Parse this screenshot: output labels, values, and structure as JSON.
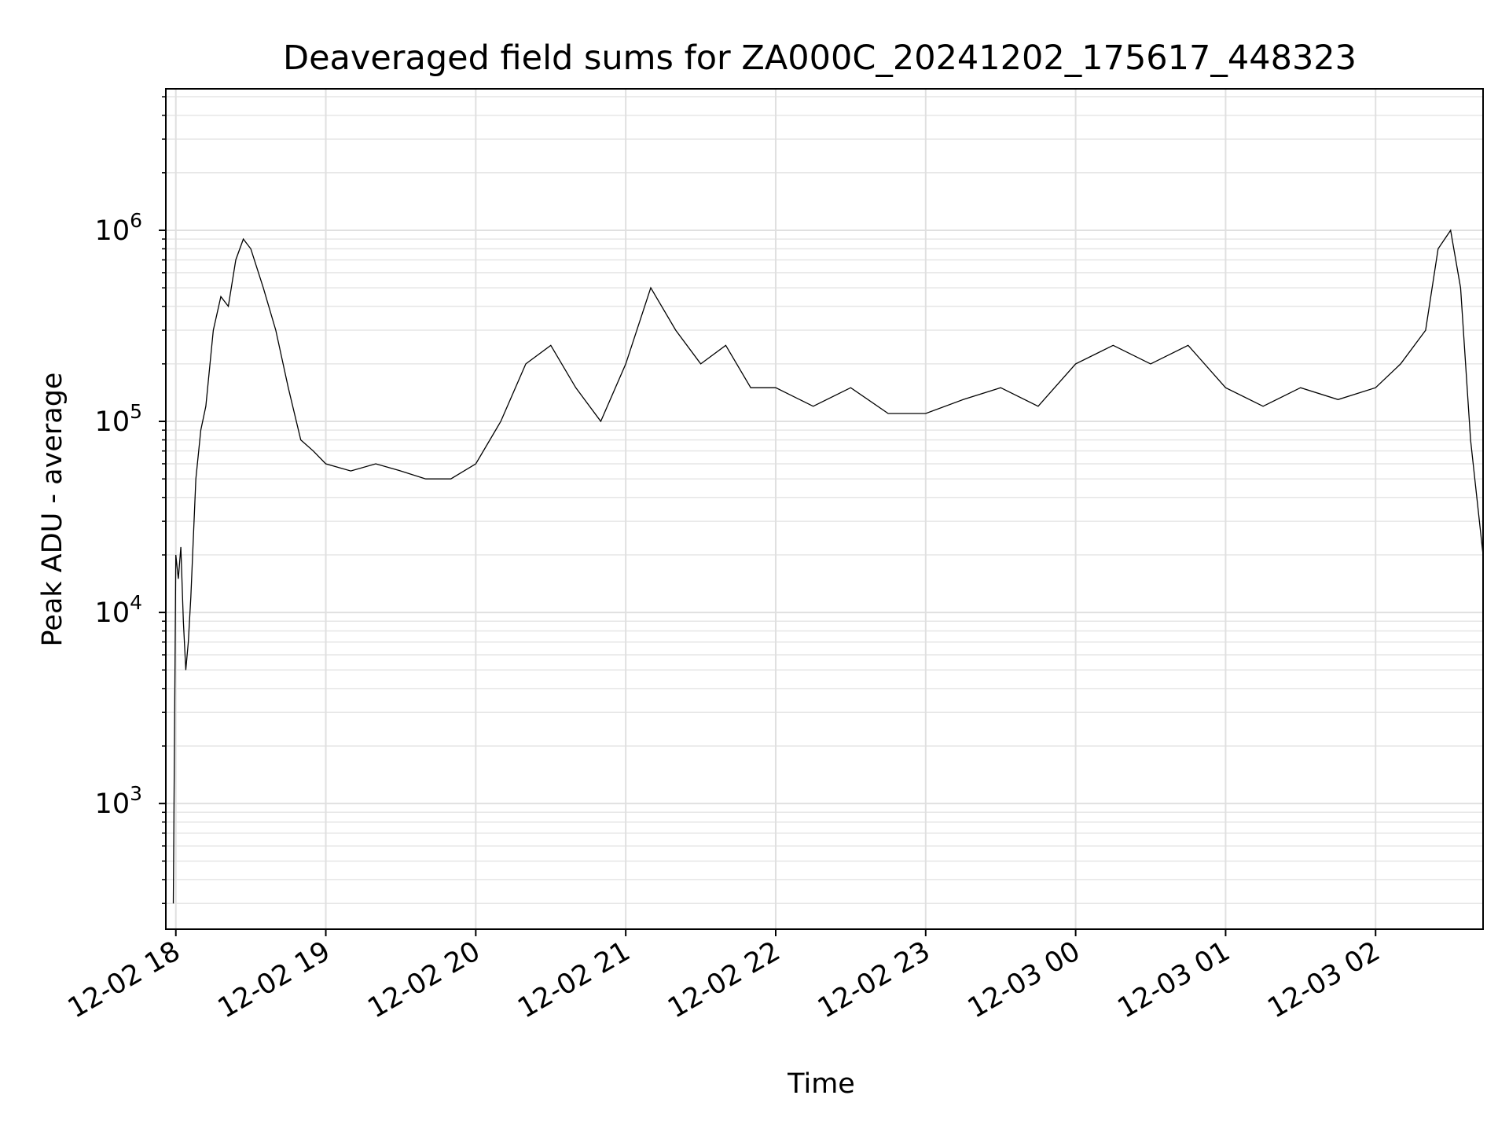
{
  "chart_data": {
    "type": "line",
    "title": "Deaveraged field sums for ZA000C_20241202_175617_448323",
    "xlabel": "Time",
    "ylabel": "Peak ADU - average",
    "yscale": "log",
    "ylim": [
      220,
      5500000
    ],
    "xlim": [
      "2024-12-02 17:56",
      "2024-12-03 02:43"
    ],
    "grid": true,
    "x_ticks": [
      {
        "value": "2024-12-02 18:00",
        "label": "12-02 18"
      },
      {
        "value": "2024-12-02 19:00",
        "label": "12-02 19"
      },
      {
        "value": "2024-12-02 20:00",
        "label": "12-02 20"
      },
      {
        "value": "2024-12-02 21:00",
        "label": "12-02 21"
      },
      {
        "value": "2024-12-02 22:00",
        "label": "12-02 22"
      },
      {
        "value": "2024-12-02 23:00",
        "label": "12-02 23"
      },
      {
        "value": "2024-12-03 00:00",
        "label": "12-03 00"
      },
      {
        "value": "2024-12-03 01:00",
        "label": "12-03 01"
      },
      {
        "value": "2024-12-03 02:00",
        "label": "12-03 02"
      }
    ],
    "y_ticks": [
      {
        "value": 1000,
        "base": "10",
        "exp": "3"
      },
      {
        "value": 10000,
        "base": "10",
        "exp": "4"
      },
      {
        "value": 100000,
        "base": "10",
        "exp": "5"
      },
      {
        "value": 1000000,
        "base": "10",
        "exp": "6"
      }
    ],
    "series": [
      {
        "color": "#000000",
        "x": [
          "2024-12-02 17:59",
          "2024-12-02 18:00",
          "2024-12-02 18:01",
          "2024-12-02 18:02",
          "2024-12-02 18:03",
          "2024-12-02 18:04",
          "2024-12-02 18:05",
          "2024-12-02 18:06",
          "2024-12-02 18:08",
          "2024-12-02 18:10",
          "2024-12-02 18:12",
          "2024-12-02 18:15",
          "2024-12-02 18:18",
          "2024-12-02 18:21",
          "2024-12-02 18:24",
          "2024-12-02 18:27",
          "2024-12-02 18:30",
          "2024-12-02 18:35",
          "2024-12-02 18:40",
          "2024-12-02 18:45",
          "2024-12-02 18:50",
          "2024-12-02 18:55",
          "2024-12-02 19:00",
          "2024-12-02 19:10",
          "2024-12-02 19:20",
          "2024-12-02 19:30",
          "2024-12-02 19:40",
          "2024-12-02 19:50",
          "2024-12-02 20:00",
          "2024-12-02 20:10",
          "2024-12-02 20:20",
          "2024-12-02 20:30",
          "2024-12-02 20:40",
          "2024-12-02 20:50",
          "2024-12-02 21:00",
          "2024-12-02 21:10",
          "2024-12-02 21:20",
          "2024-12-02 21:30",
          "2024-12-02 21:40",
          "2024-12-02 21:50",
          "2024-12-02 22:00",
          "2024-12-02 22:15",
          "2024-12-02 22:30",
          "2024-12-02 22:45",
          "2024-12-02 23:00",
          "2024-12-02 23:15",
          "2024-12-02 23:30",
          "2024-12-02 23:45",
          "2024-12-03 00:00",
          "2024-12-03 00:15",
          "2024-12-03 00:30",
          "2024-12-03 00:45",
          "2024-12-03 01:00",
          "2024-12-03 01:15",
          "2024-12-03 01:30",
          "2024-12-03 01:45",
          "2024-12-03 02:00",
          "2024-12-03 02:10",
          "2024-12-03 02:20",
          "2024-12-03 02:25",
          "2024-12-03 02:30",
          "2024-12-03 02:34",
          "2024-12-03 02:38",
          "2024-12-03 02:43"
        ],
        "y": [
          300,
          20000,
          15000,
          22000,
          9000,
          5000,
          7000,
          12000,
          50000,
          90000,
          120000,
          300000,
          450000,
          400000,
          700000,
          900000,
          800000,
          500000,
          300000,
          150000,
          80000,
          70000,
          60000,
          55000,
          60000,
          55000,
          50000,
          50000,
          60000,
          100000,
          200000,
          250000,
          150000,
          100000,
          200000,
          500000,
          300000,
          200000,
          250000,
          150000,
          150000,
          120000,
          150000,
          110000,
          110000,
          130000,
          150000,
          120000,
          200000,
          250000,
          200000,
          250000,
          150000,
          120000,
          150000,
          130000,
          150000,
          200000,
          300000,
          800000,
          1000000,
          500000,
          80000,
          20000
        ]
      }
    ]
  }
}
